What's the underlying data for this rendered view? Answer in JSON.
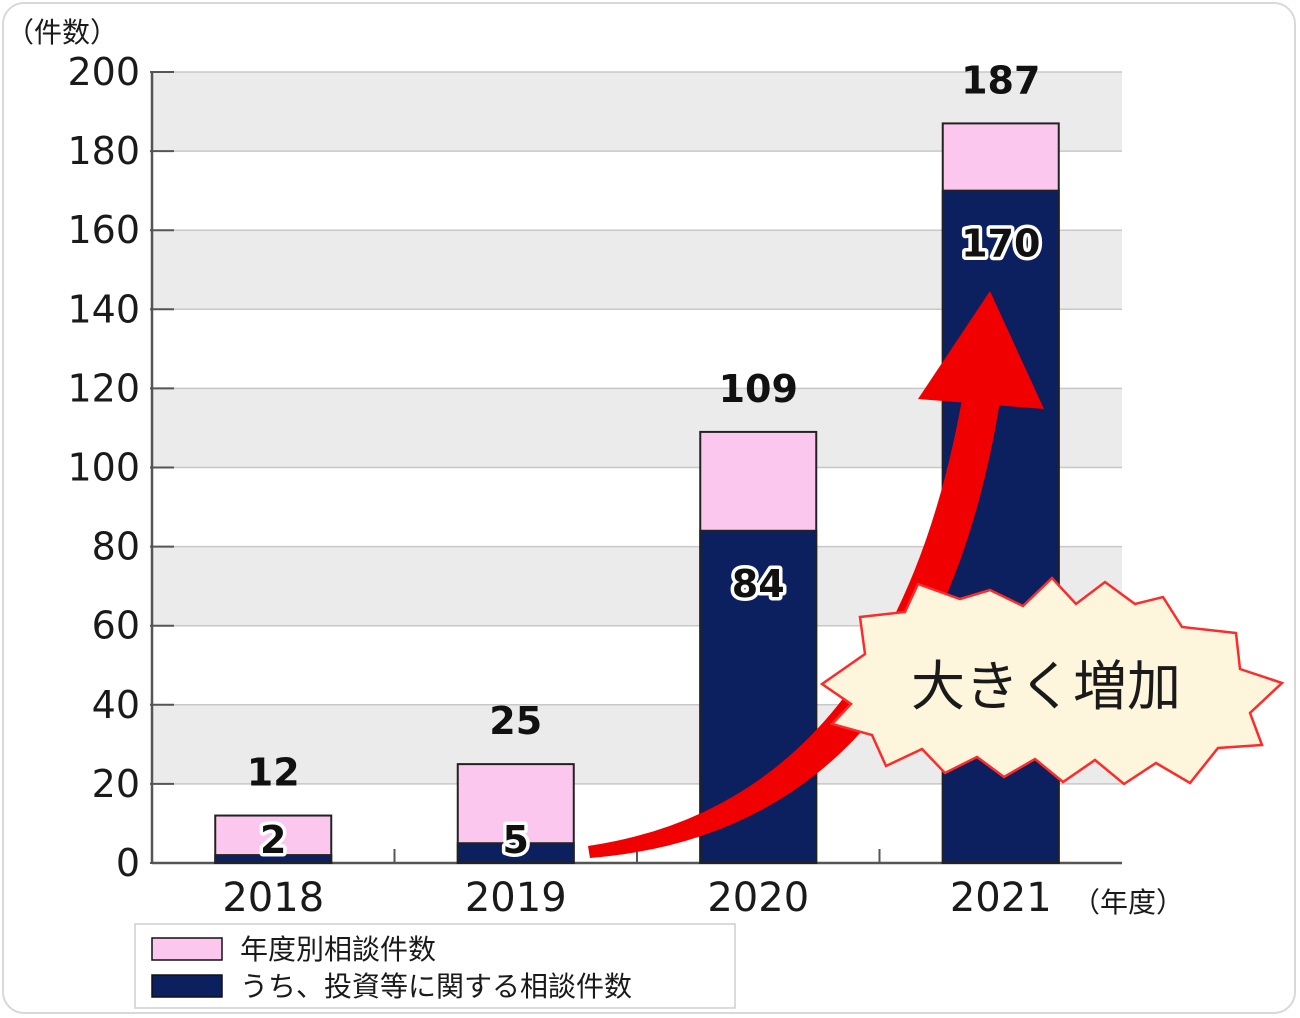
{
  "colors": {
    "total_fill": "#fcc7ee",
    "investment_fill": "#0c1f5e",
    "band_fill": "#ebebeb",
    "arrow": "#f00000",
    "callout_fill": "#fdf6dd",
    "callout_stroke": "#ff2a2a"
  },
  "chart_data": {
    "type": "bar",
    "stacked_overlay": true,
    "y_unit_label": "（件数）",
    "x_unit_label": "（年度）",
    "ylim": [
      0,
      200
    ],
    "y_ticks": [
      0,
      20,
      40,
      60,
      80,
      100,
      120,
      140,
      160,
      180,
      200
    ],
    "categories": [
      "2018",
      "2019",
      "2020",
      "2021"
    ],
    "series": [
      {
        "name": "年度別相談件数",
        "values": [
          12,
          25,
          109,
          187
        ],
        "color": "#fcc7ee"
      },
      {
        "name": "うち、投資等に関する相談件数",
        "values": [
          2,
          5,
          84,
          170
        ],
        "color": "#0c1f5e"
      }
    ],
    "grid": "alternating horizontal bands",
    "legend_position": "bottom-left",
    "annotation": "大きく増加"
  }
}
